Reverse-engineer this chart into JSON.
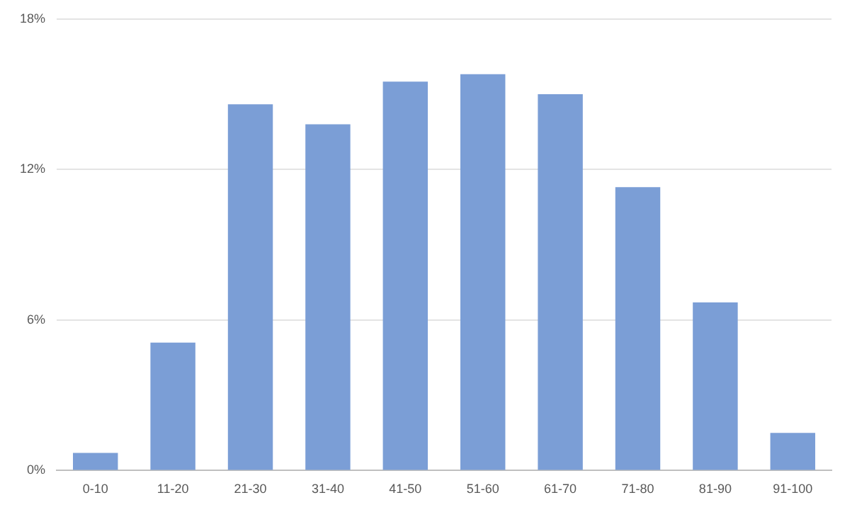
{
  "chart_data": {
    "type": "bar",
    "categories": [
      "0-10",
      "11-20",
      "21-30",
      "31-40",
      "41-50",
      "51-60",
      "61-70",
      "71-80",
      "81-90",
      "91-100"
    ],
    "values": [
      0.7,
      5.1,
      14.6,
      13.8,
      15.5,
      15.8,
      15.0,
      11.3,
      6.7,
      1.5
    ],
    "color": "#7b9ed6",
    "ylim": [
      0,
      18
    ],
    "yticks": [
      {
        "value": 0,
        "label": "0%"
      },
      {
        "value": 6,
        "label": "6%"
      },
      {
        "value": 12,
        "label": "12%"
      },
      {
        "value": 18,
        "label": "18%"
      }
    ],
    "grid": "y",
    "legend": false
  }
}
